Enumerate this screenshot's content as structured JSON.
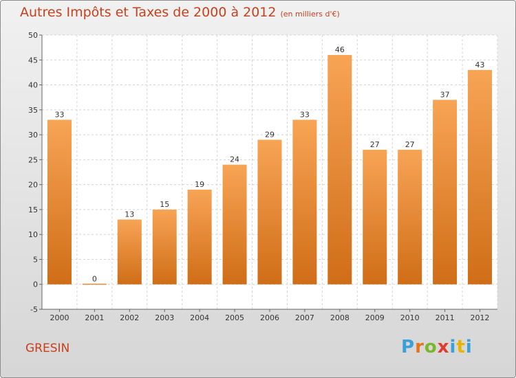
{
  "header": {
    "title": "Autres Impôts et Taxes de 2000 à 2012",
    "unit": "(en milliers d'€)"
  },
  "footer": {
    "commune": "GRESIN",
    "logo": [
      "P",
      "r",
      "o",
      "x",
      "i",
      "t",
      "i"
    ]
  },
  "colors": {
    "title": "#c8401c",
    "bar_top": "#f7a455",
    "bar_bottom": "#d06d17",
    "logo": [
      "#3aa0d8",
      "#e8731d",
      "#7ab82a",
      "#e23a2e",
      "#3aa0d8",
      "#e8b400",
      "#3aa0d8"
    ]
  },
  "chart_data": {
    "type": "bar",
    "title": "Autres Impôts et Taxes de 2000 à 2012",
    "subtitle": "(en milliers d'€)",
    "categories": [
      "2000",
      "2001",
      "2002",
      "2003",
      "2004",
      "2005",
      "2006",
      "2007",
      "2008",
      "2009",
      "2010",
      "2011",
      "2012"
    ],
    "values": [
      33,
      0,
      13,
      15,
      19,
      24,
      29,
      33,
      46,
      27,
      27,
      37,
      43
    ],
    "ylim": [
      -5,
      50
    ],
    "yticks": [
      -5,
      0,
      5,
      10,
      15,
      20,
      25,
      30,
      35,
      40,
      45,
      50
    ],
    "grid": true,
    "legend": "none"
  }
}
